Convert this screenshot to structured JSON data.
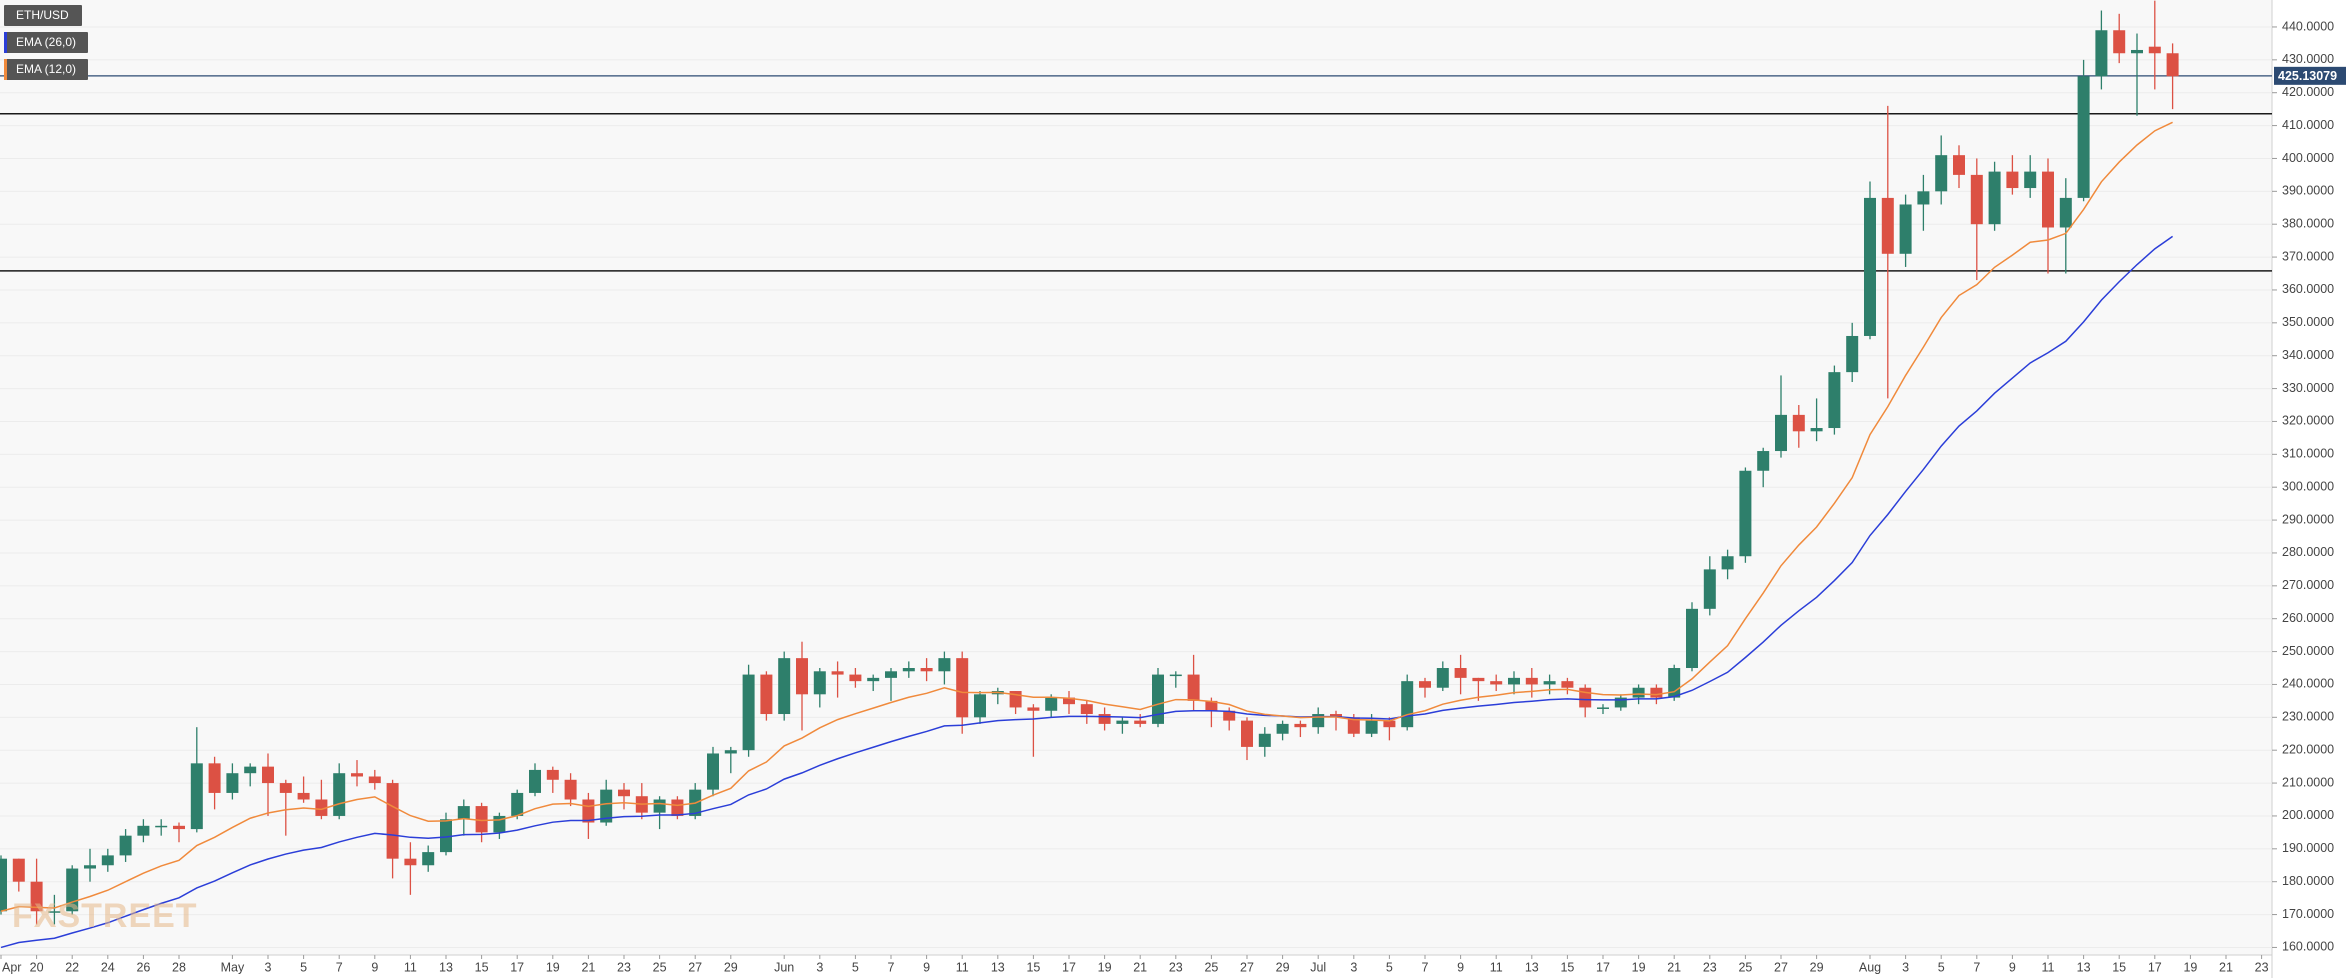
{
  "chart_data": {
    "type": "candlestick",
    "watermark": "FXSTREET",
    "categories": [
      "Apr",
      null,
      "20",
      null,
      "22",
      null,
      "24",
      null,
      "26",
      null,
      "28",
      null,
      null,
      "May",
      null,
      "3",
      null,
      "5",
      null,
      "7",
      null,
      "9",
      null,
      "11",
      null,
      "13",
      null,
      "15",
      null,
      "17",
      null,
      "19",
      null,
      "21",
      null,
      "23",
      null,
      "25",
      null,
      "27",
      null,
      "29",
      null,
      null,
      "Jun",
      null,
      "3",
      null,
      "5",
      null,
      "7",
      null,
      "9",
      null,
      "11",
      null,
      "13",
      null,
      "15",
      null,
      "17",
      null,
      "19",
      null,
      "21",
      null,
      "23",
      null,
      "25",
      null,
      "27",
      null,
      "29",
      null,
      "Jul",
      null,
      "3",
      null,
      "5",
      null,
      "7",
      null,
      "9",
      null,
      "11",
      null,
      "13",
      null,
      "15",
      null,
      "17",
      null,
      "19",
      null,
      "21",
      null,
      "23",
      null,
      "25",
      null,
      "27",
      null,
      "29",
      null,
      null,
      "Aug",
      null,
      "3",
      null,
      "5",
      null,
      "7",
      null,
      "9",
      null,
      "11",
      null,
      "13",
      null,
      "15",
      null,
      "17",
      null,
      "19",
      null,
      "21",
      null,
      "23"
    ],
    "series": [
      {
        "name": "ETH/USD",
        "type": "candlestick",
        "up_color": "#2e7f6b",
        "down_color": "#dc5144",
        "open": [
          171,
          187,
          180,
          171,
          171,
          184,
          185,
          188,
          194,
          197,
          197,
          196,
          216,
          207,
          213,
          215,
          210,
          207,
          205,
          200,
          213,
          212,
          210,
          187,
          185,
          189,
          199,
          203,
          195,
          200,
          207,
          214,
          211,
          205,
          198,
          208,
          206,
          201,
          205,
          200,
          208,
          219,
          220,
          243,
          231,
          248,
          237,
          244,
          243,
          241,
          242,
          244,
          245,
          244,
          248,
          230,
          237,
          238,
          233,
          232,
          236,
          234,
          231,
          228,
          229,
          228,
          243,
          243,
          235,
          232,
          229,
          221,
          225,
          228,
          227,
          231,
          230,
          225,
          229,
          227,
          241,
          239,
          245,
          242,
          241,
          240,
          242,
          240,
          241,
          239,
          233,
          233,
          236,
          239,
          236,
          245,
          263,
          275,
          279,
          305,
          311,
          322,
          317,
          318,
          335,
          346,
          388,
          371,
          386,
          390,
          401,
          395,
          380,
          396,
          391,
          396,
          379,
          388,
          425,
          439,
          432,
          434,
          432,
          null,
          null,
          null,
          null,
          null
        ],
        "high": [
          188,
          187,
          187,
          176,
          185,
          190,
          190,
          196,
          199,
          199,
          198,
          227,
          218,
          216,
          216,
          219,
          211,
          212,
          211,
          216,
          217,
          214,
          211,
          192,
          191,
          201,
          205,
          204,
          201,
          208,
          216,
          215,
          213,
          207,
          211,
          210,
          210,
          206,
          206,
          210,
          221,
          221,
          246,
          244,
          250,
          253,
          245,
          247,
          245,
          243,
          245,
          247,
          248,
          250,
          250,
          238,
          239,
          238,
          234,
          237,
          238,
          235,
          233,
          230,
          231,
          245,
          244,
          249,
          236,
          233,
          230,
          227,
          229,
          229,
          233,
          232,
          231,
          231,
          230,
          243,
          242,
          247,
          249,
          242,
          243,
          244,
          245,
          243,
          242,
          240,
          234,
          237,
          240,
          240,
          246,
          265,
          279,
          281,
          306,
          312,
          334,
          325,
          327,
          337,
          350,
          393,
          416,
          389,
          395,
          407,
          404,
          400,
          399,
          401,
          401,
          400,
          394,
          430,
          445,
          444,
          438,
          448,
          435,
          null,
          null,
          null,
          null,
          null
        ],
        "low": [
          170,
          177,
          167,
          167,
          170,
          180,
          183,
          186,
          192,
          194,
          192,
          195,
          202,
          205,
          209,
          200,
          194,
          204,
          199,
          199,
          209,
          208,
          181,
          176,
          183,
          188,
          194,
          192,
          193,
          199,
          206,
          207,
          203,
          193,
          197,
          202,
          199,
          196,
          199,
          199,
          206,
          213,
          218,
          229,
          229,
          226,
          233,
          236,
          239,
          238,
          235,
          242,
          241,
          240,
          225,
          228,
          234,
          231,
          218,
          230,
          231,
          228,
          226,
          225,
          227,
          227,
          239,
          232,
          227,
          226,
          217,
          218,
          223,
          224,
          225,
          226,
          224,
          224,
          223,
          226,
          236,
          238,
          237,
          235,
          238,
          237,
          236,
          237,
          237,
          230,
          231,
          232,
          234,
          234,
          235,
          244,
          261,
          272,
          277,
          300,
          309,
          312,
          314,
          316,
          332,
          345,
          327,
          367,
          378,
          386,
          391,
          363,
          378,
          389,
          388,
          365,
          365,
          387,
          421,
          429,
          413,
          421,
          415,
          null,
          null,
          null,
          null,
          null
        ],
        "close": [
          187,
          180,
          171,
          171,
          184,
          185,
          188,
          194,
          197,
          197,
          196,
          216,
          207,
          213,
          215,
          210,
          207,
          205,
          200,
          213,
          212,
          210,
          187,
          185,
          189,
          199,
          203,
          195,
          200,
          207,
          214,
          211,
          205,
          198,
          208,
          206,
          201,
          205,
          200,
          208,
          219,
          220,
          243,
          231,
          248,
          237,
          244,
          243,
          241,
          242,
          244,
          245,
          244,
          248,
          230,
          237,
          238,
          233,
          232,
          236,
          234,
          231,
          228,
          229,
          228,
          243,
          243,
          235,
          232,
          229,
          221,
          225,
          228,
          227,
          231,
          230,
          225,
          229,
          227,
          241,
          239,
          245,
          242,
          241,
          240,
          242,
          240,
          241,
          239,
          233,
          233,
          236,
          239,
          236,
          245,
          263,
          275,
          279,
          305,
          311,
          322,
          317,
          318,
          335,
          346,
          388,
          371,
          386,
          390,
          401,
          395,
          380,
          396,
          391,
          396,
          379,
          388,
          425,
          439,
          432,
          433,
          432,
          425,
          null,
          null,
          null,
          null,
          null
        ]
      },
      {
        "name": "EMA (26,0)",
        "type": "line",
        "color": "#2b3ed8",
        "values": [
          160.0,
          161.5,
          162.2,
          162.8,
          164.4,
          165.9,
          167.5,
          169.5,
          171.5,
          173.4,
          175.1,
          178.1,
          180.2,
          182.7,
          185.1,
          186.9,
          188.4,
          189.6,
          190.4,
          192.1,
          193.5,
          194.7,
          194.2,
          193.5,
          193.2,
          193.6,
          194.3,
          194.4,
          194.8,
          195.7,
          197.0,
          198.1,
          198.6,
          198.6,
          199.3,
          199.8,
          199.9,
          200.3,
          200.3,
          200.8,
          202.2,
          203.5,
          206.4,
          208.2,
          211.2,
          213.1,
          215.4,
          217.4,
          219.2,
          220.9,
          222.6,
          224.2,
          225.7,
          227.4,
          227.6,
          228.3,
          229.0,
          229.3,
          229.5,
          230.0,
          230.3,
          230.3,
          230.2,
          230.1,
          229.9,
          230.9,
          231.8,
          232.0,
          232.0,
          231.8,
          231.0,
          230.6,
          230.4,
          230.1,
          230.2,
          230.2,
          229.8,
          229.7,
          229.5,
          230.4,
          231.0,
          232.1,
          232.8,
          233.4,
          233.9,
          234.5,
          234.9,
          235.4,
          235.6,
          235.4,
          235.3,
          235.3,
          235.6,
          235.6,
          236.3,
          238.2,
          240.9,
          243.7,
          248.2,
          252.9,
          258.0,
          262.4,
          266.5,
          271.6,
          277.1,
          285.3,
          291.7,
          298.7,
          305.4,
          312.5,
          318.6,
          323.2,
          328.6,
          333.2,
          337.8,
          340.9,
          344.4,
          350.3,
          356.9,
          362.5,
          367.7,
          372.5,
          376.3,
          null,
          null,
          null,
          null,
          null
        ]
      },
      {
        "name": "EMA (12,0)",
        "type": "line",
        "color": "#f08a3c",
        "values": [
          171.0,
          172.4,
          172.2,
          172.0,
          173.8,
          175.5,
          177.4,
          180.0,
          182.6,
          184.8,
          186.5,
          191.0,
          193.5,
          196.5,
          199.3,
          200.9,
          201.9,
          202.4,
          202.0,
          203.7,
          205.0,
          205.8,
          202.9,
          200.1,
          198.4,
          198.5,
          199.2,
          198.6,
          198.8,
          200.1,
          202.2,
          203.6,
          203.8,
          202.9,
          203.7,
          204.0,
          203.6,
          203.8,
          203.2,
          203.9,
          206.3,
          208.4,
          213.7,
          216.4,
          221.3,
          223.7,
          226.8,
          229.3,
          231.1,
          232.8,
          234.5,
          236.1,
          237.3,
          239.0,
          237.6,
          237.5,
          237.6,
          236.9,
          236.1,
          236.1,
          235.8,
          235.1,
          234.0,
          233.2,
          232.4,
          234.0,
          235.4,
          235.3,
          234.8,
          233.9,
          231.9,
          230.9,
          230.4,
          229.9,
          230.1,
          230.1,
          229.3,
          229.2,
          228.9,
          230.8,
          232.0,
          234.0,
          235.2,
          236.1,
          236.7,
          237.5,
          237.9,
          238.4,
          238.5,
          237.6,
          236.9,
          236.8,
          237.1,
          236.9,
          237.8,
          241.7,
          246.8,
          251.8,
          260.0,
          267.8,
          276.1,
          282.4,
          287.9,
          295.1,
          302.9,
          316.0,
          324.5,
          334.0,
          342.6,
          351.6,
          358.3,
          361.6,
          366.9,
          370.6,
          374.5,
          375.2,
          377.2,
          384.5,
          392.9,
          398.9,
          404.1,
          408.4,
          411.0,
          null,
          null,
          null,
          null,
          null
        ]
      }
    ],
    "hlines": [
      {
        "value": 413.6,
        "color": "#1a1a1a"
      },
      {
        "value": 365.8,
        "color": "#1a1a1a"
      }
    ],
    "last_price": 425.13079,
    "last_price_color": "#2c4a72",
    "ylim": [
      157.7,
      448.2
    ],
    "yticks": [
      {
        "value": 160,
        "label": "160.0000"
      },
      {
        "value": 170,
        "label": "170.0000"
      },
      {
        "value": 180,
        "label": "180.0000"
      },
      {
        "value": 190,
        "label": "190.0000"
      },
      {
        "value": 200,
        "label": "200.0000"
      },
      {
        "value": 210,
        "label": "210.0000"
      },
      {
        "value": 220,
        "label": "220.0000"
      },
      {
        "value": 230,
        "label": "230.0000"
      },
      {
        "value": 240,
        "label": "240.0000"
      },
      {
        "value": 250,
        "label": "250.0000"
      },
      {
        "value": 260,
        "label": "260.0000"
      },
      {
        "value": 270,
        "label": "270.0000"
      },
      {
        "value": 280,
        "label": "280.0000"
      },
      {
        "value": 290,
        "label": "290.0000"
      },
      {
        "value": 300,
        "label": "300.0000"
      },
      {
        "value": 310,
        "label": "310.0000"
      },
      {
        "value": 320,
        "label": "320.0000"
      },
      {
        "value": 330,
        "label": "330.0000"
      },
      {
        "value": 340,
        "label": "340.0000"
      },
      {
        "value": 350,
        "label": "350.0000"
      },
      {
        "value": 360,
        "label": "360.0000"
      },
      {
        "value": 370,
        "label": "370.0000"
      },
      {
        "value": 380,
        "label": "380.0000"
      },
      {
        "value": 390,
        "label": "390.0000"
      },
      {
        "value": 400,
        "label": "400.0000"
      },
      {
        "value": 410,
        "label": "410.0000"
      },
      {
        "value": 420,
        "label": "420.0000"
      },
      {
        "value": 430,
        "label": "430.0000"
      },
      {
        "value": 440,
        "label": "440.0000"
      }
    ],
    "grid": true
  }
}
